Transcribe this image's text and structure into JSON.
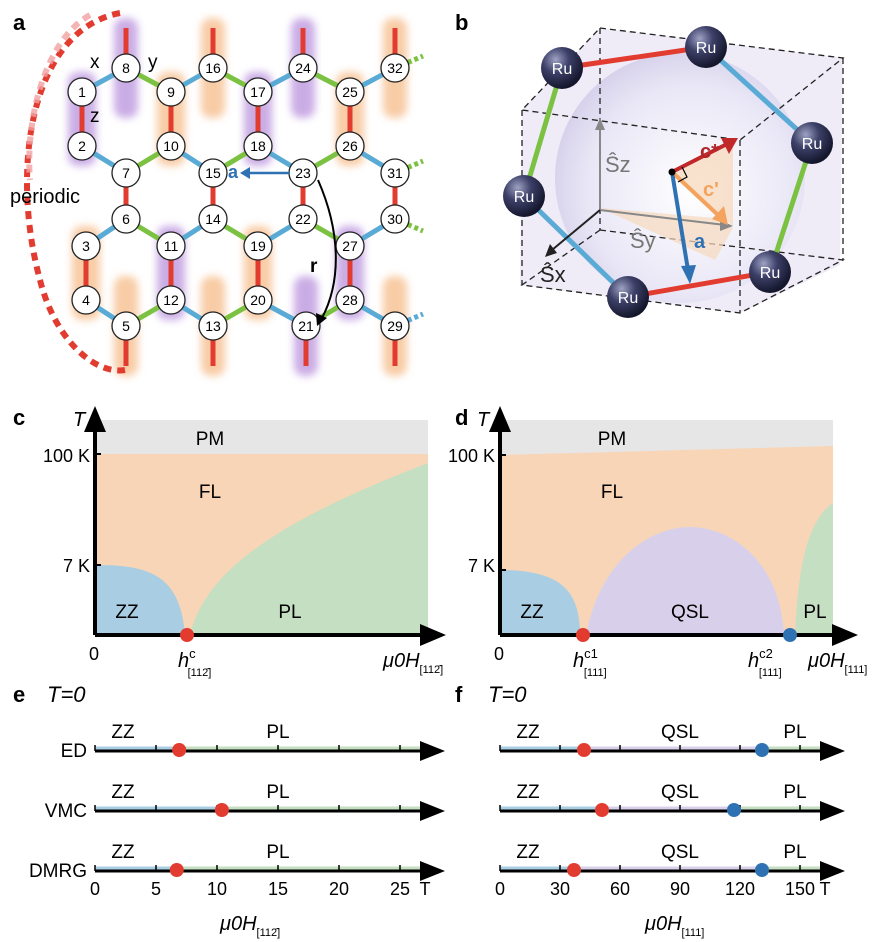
{
  "panels": {
    "a": "a",
    "b": "b",
    "c": "c",
    "d": "d",
    "e": "e",
    "f": "f"
  },
  "colors": {
    "x_bond": "#5aaad6",
    "y_bond": "#7cc242",
    "z_bond": "#e23b30",
    "zz": "#a9cde2",
    "fl": "#f8d5b6",
    "pm": "#e6e6e6",
    "pl": "#c4dfc2",
    "qsl": "#d8d0eb",
    "red_pt": "#e23b30",
    "blue_pt": "#2f72b4",
    "orange": "#f3a35d",
    "purple": "#a06ad1"
  },
  "panel_a": {
    "bond_x": "x",
    "bond_y": "y",
    "bond_z": "z",
    "periodic": "periodic",
    "vec_a": "a",
    "vec_r": "r",
    "sites": [
      "1",
      "2",
      "3",
      "4",
      "5",
      "6",
      "7",
      "8",
      "9",
      "10",
      "11",
      "12",
      "13",
      "14",
      "15",
      "16",
      "17",
      "18",
      "19",
      "20",
      "21",
      "22",
      "23",
      "24",
      "25",
      "26",
      "27",
      "28",
      "29",
      "30",
      "31",
      "32"
    ]
  },
  "panel_b": {
    "ru": "Ru",
    "sz": "Ŝz",
    "sy": "Ŝy",
    "sx": "Ŝx",
    "cstar": "c*",
    "cprime": "c'",
    "a": "a"
  },
  "panel_c": {
    "ylabel": "T",
    "y_100k": "100 K",
    "y_7k": "7 K",
    "x0": "0",
    "regions": {
      "pm": "PM",
      "fl": "FL",
      "zz": "ZZ",
      "pl": "PL"
    },
    "hc_main": "h",
    "hc_sup": "c",
    "hc_sub": "[112̄]",
    "xaxis_main": "μ0H",
    "xaxis_sub": "[112̄]"
  },
  "panel_d": {
    "ylabel": "T",
    "y_100k": "100 K",
    "y_7k": "7 K",
    "x0": "0",
    "regions": {
      "pm": "PM",
      "fl": "FL",
      "zz": "ZZ",
      "qsl": "QSL",
      "pl": "PL"
    },
    "hc1_main": "h",
    "hc1_sup": "c1",
    "hc1_sub": "[111]",
    "hc2_main": "h",
    "hc2_sup": "c2",
    "hc2_sub": "[111]",
    "xaxis_main": "μ0H",
    "xaxis_sub": "[111]"
  },
  "panel_e": {
    "title": "T=0",
    "rows": [
      {
        "method": "ED",
        "left": "ZZ",
        "right": "PL",
        "crit": 6.9
      },
      {
        "method": "VMC",
        "left": "ZZ",
        "right": "PL",
        "crit": 10.4
      },
      {
        "method": "DMRG",
        "left": "ZZ",
        "right": "PL",
        "crit": 6.7
      }
    ],
    "ticks": [
      "0",
      "5",
      "10",
      "15",
      "20",
      "25"
    ],
    "unit": "T",
    "xaxis_main": "μ0H",
    "xaxis_sub": "[112̄]"
  },
  "panel_f": {
    "title": "T=0",
    "rows": [
      {
        "method": "",
        "left": "ZZ",
        "mid": "QSL",
        "right": "PL",
        "crit1": 42,
        "crit2": 131
      },
      {
        "method": "",
        "left": "ZZ",
        "mid": "QSL",
        "right": "PL",
        "crit1": 51,
        "crit2": 117
      },
      {
        "method": "",
        "left": "ZZ",
        "mid": "QSL",
        "right": "PL",
        "crit1": 37,
        "crit2": 131
      }
    ],
    "ticks": [
      "0",
      "30",
      "60",
      "90",
      "120",
      "150"
    ],
    "unit": "T",
    "xaxis_main": "μ0H",
    "xaxis_sub": "[111]"
  }
}
